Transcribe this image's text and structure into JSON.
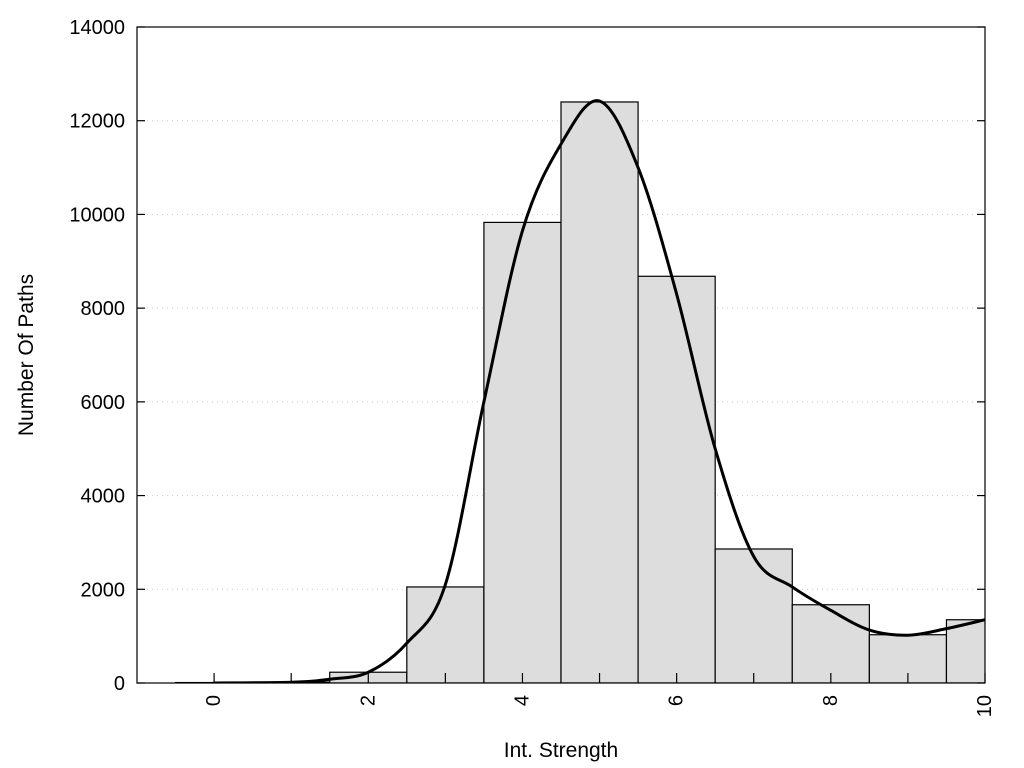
{
  "chart_data": {
    "type": "bar",
    "title": "",
    "xlabel": "Int. Strength",
    "ylabel": "Number Of Paths",
    "xlim": [
      -1,
      10
    ],
    "ylim": [
      0,
      14000
    ],
    "x_ticks": [
      0,
      2,
      4,
      6,
      8,
      10
    ],
    "y_ticks": [
      0,
      2000,
      4000,
      6000,
      8000,
      10000,
      12000,
      14000
    ],
    "grid": "horizontal-dotted",
    "bar_color": "#dddddd",
    "line_color": "#000000",
    "categories": [
      0,
      1,
      2,
      3,
      4,
      5,
      6,
      7,
      8,
      9,
      10
    ],
    "values": [
      10,
      20,
      230,
      2050,
      9830,
      12400,
      8680,
      2860,
      1670,
      1030,
      1350
    ],
    "series": [
      {
        "type": "line",
        "smooth": true,
        "x": [
          0,
          1,
          1.5,
          2,
          2.5,
          3,
          3.5,
          4,
          4.5,
          5,
          5.5,
          6,
          6.5,
          7,
          7.5,
          8,
          8.5,
          9,
          9.5,
          10
        ],
        "y": [
          0,
          15,
          80,
          230,
          850,
          2100,
          6000,
          9650,
          11500,
          12420,
          11000,
          8300,
          5000,
          2700,
          2050,
          1550,
          1130,
          1020,
          1160,
          1350
        ]
      }
    ]
  }
}
